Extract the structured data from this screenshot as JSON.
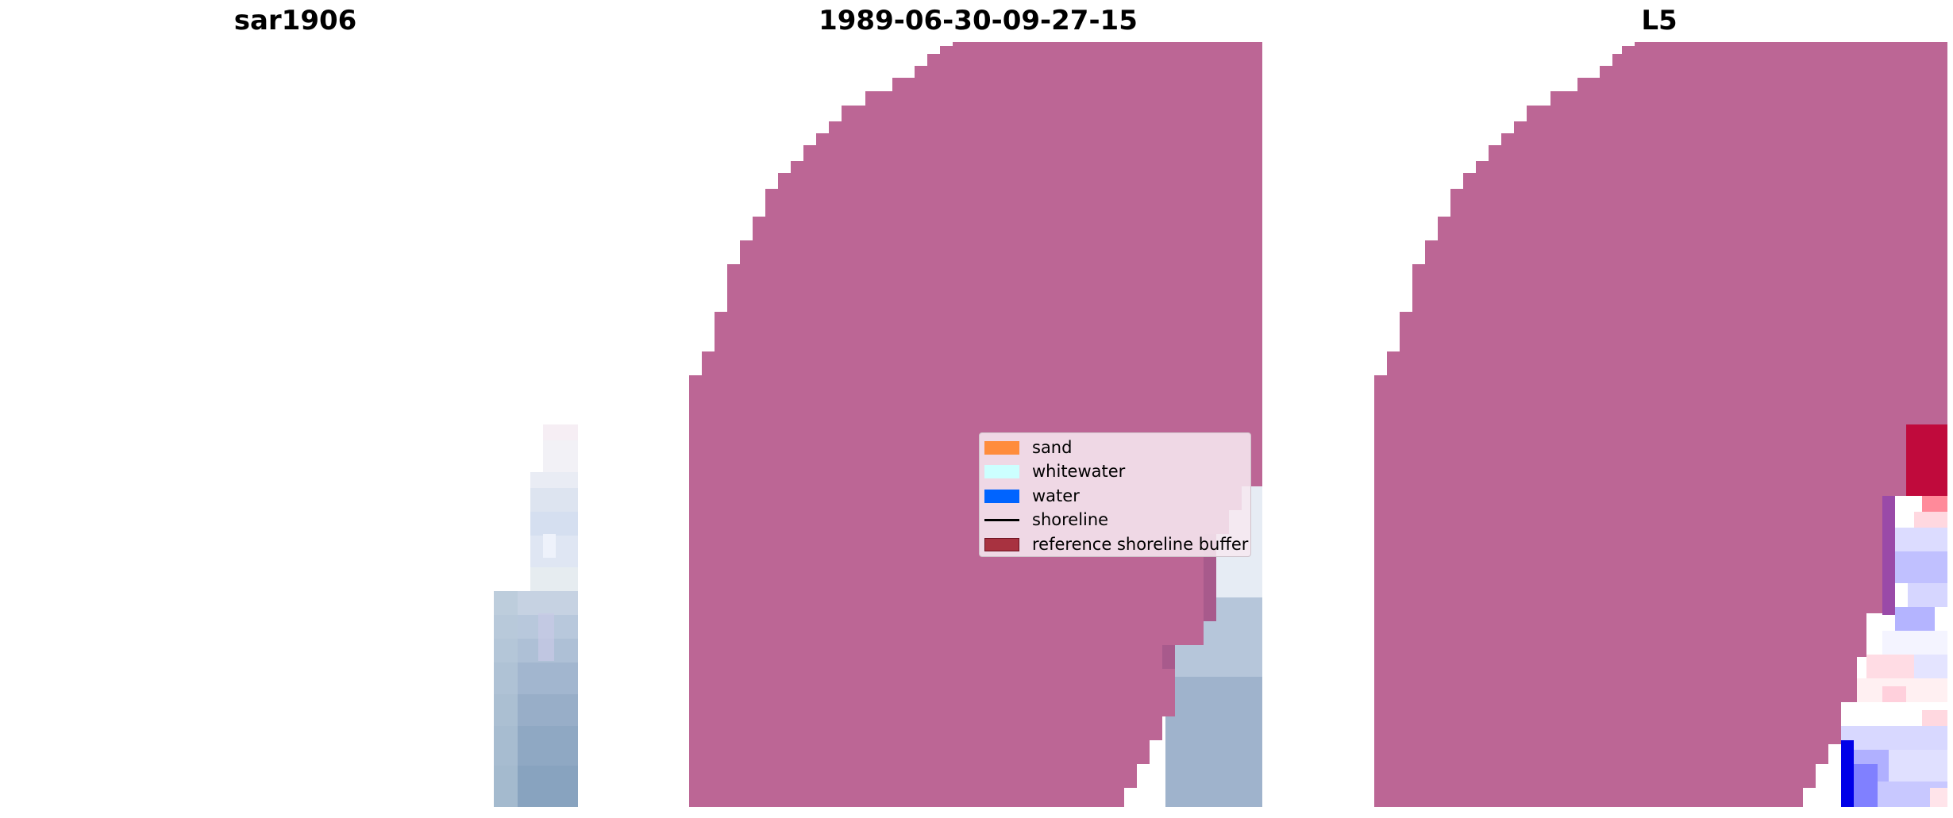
{
  "titles": {
    "left": "sar1906",
    "middle": "1989-06-30-09-27-15",
    "right": "L5"
  },
  "legend": {
    "items": [
      {
        "label": "sand",
        "color": "#ff8c3c",
        "kind": "patch"
      },
      {
        "label": "whitewater",
        "color": "#ccffff",
        "kind": "patch"
      },
      {
        "label": "water",
        "color": "#0064ff",
        "kind": "patch"
      },
      {
        "label": "shoreline",
        "color": "#000000",
        "kind": "line"
      },
      {
        "label": "reference shoreline buffer",
        "color": "#a83240",
        "kind": "patch"
      }
    ]
  },
  "colors": {
    "overlay_magenta": "#bc6695",
    "background": "#ffffff"
  }
}
